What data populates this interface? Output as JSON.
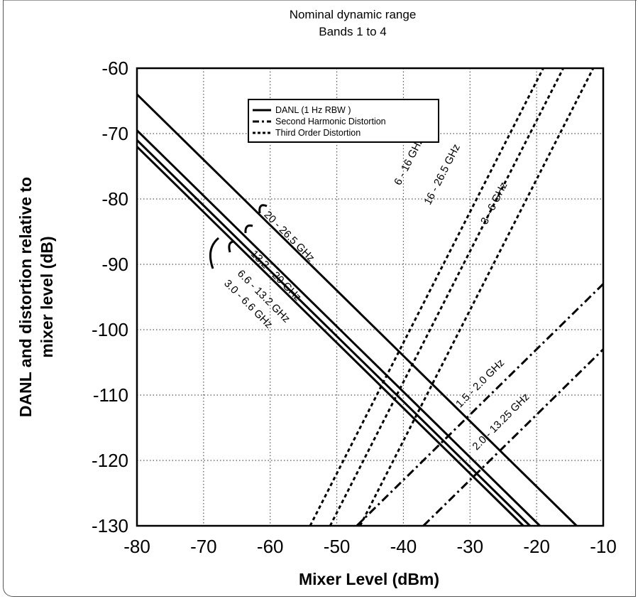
{
  "chart_data": {
    "type": "line",
    "title": "Nominal dynamic range",
    "subtitle": "Bands 1 to 4",
    "xlabel": "Mixer Level (dBm)",
    "ylabel_line1": "DANL and distortion  relative to",
    "ylabel_line2": "mixer level (dB)",
    "xlim": [
      -80,
      -10
    ],
    "ylim": [
      -130,
      -60
    ],
    "x_ticks": [
      -80,
      -70,
      -60,
      -50,
      -40,
      -30,
      -20,
      -10
    ],
    "y_ticks": [
      -60,
      -70,
      -80,
      -90,
      -100,
      -110,
      -120,
      -130
    ],
    "grid": true,
    "legend_position": "top-center",
    "legend": [
      {
        "label": "DANL (1 Hz RBW )",
        "style": "solid"
      },
      {
        "label": "Second Harmonic Distortion",
        "style": "dashdot"
      },
      {
        "label": "Third Order Distortion",
        "style": "dotted"
      }
    ],
    "series": [
      {
        "name": "20 - 26.5 GHz",
        "kind": "DANL",
        "style": "solid",
        "x": [
          -80,
          -14
        ],
        "y": [
          -64,
          -130
        ]
      },
      {
        "name": "13.2 - 20 GHz",
        "kind": "DANL",
        "style": "solid",
        "x": [
          -80,
          -19.5
        ],
        "y": [
          -69.5,
          -130
        ]
      },
      {
        "name": "6.6 - 13.2 GHz",
        "kind": "DANL",
        "style": "solid",
        "x": [
          -80,
          -21
        ],
        "y": [
          -71,
          -130
        ]
      },
      {
        "name": "3.0 - 6.6 GHz",
        "kind": "DANL",
        "style": "solid",
        "x": [
          -80,
          -22
        ],
        "y": [
          -72,
          -130
        ]
      },
      {
        "name": "1.5 - 2.0 GHz",
        "kind": "Second Harmonic Distortion",
        "style": "dashdot",
        "x": [
          -47,
          -10
        ],
        "y": [
          -130,
          -93
        ]
      },
      {
        "name": "2.0 - 13.25 GHz",
        "kind": "Second Harmonic Distortion",
        "style": "dashdot",
        "x": [
          -37,
          -10
        ],
        "y": [
          -130,
          -103
        ]
      },
      {
        "name": "6 - 16 GHz",
        "kind": "Third Order Distortion",
        "style": "dotted",
        "x": [
          -54,
          -19
        ],
        "y": [
          -130,
          -60
        ]
      },
      {
        "name": "16 - 26.5 GHz",
        "kind": "Third Order Distortion",
        "style": "dotted",
        "x": [
          -51,
          -16
        ],
        "y": [
          -130,
          -60
        ]
      },
      {
        "name": "3 - 6 GHz",
        "kind": "Third Order Distortion",
        "style": "dotted",
        "x": [
          -46.5,
          -11.5
        ],
        "y": [
          -130,
          -60
        ]
      }
    ]
  }
}
